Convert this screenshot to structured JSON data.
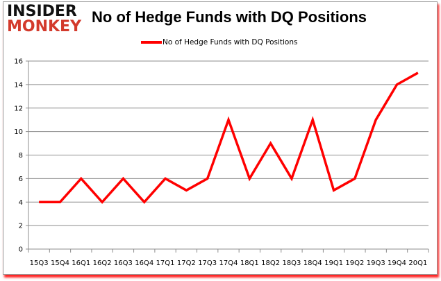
{
  "logo": {
    "line1": "INSIDER",
    "line2": "MONKEY"
  },
  "chart_data": {
    "type": "line",
    "title": "No of Hedge Funds with DQ Positions",
    "categories": [
      "15Q3",
      "15Q4",
      "16Q1",
      "16Q2",
      "16Q3",
      "16Q4",
      "17Q1",
      "17Q2",
      "17Q3",
      "17Q4",
      "18Q1",
      "18Q2",
      "18Q3",
      "18Q4",
      "19Q1",
      "19Q2",
      "19Q3",
      "19Q4",
      "20Q1"
    ],
    "series": [
      {
        "name": "No of Hedge Funds with DQ Positions",
        "color": "#ff0000",
        "values": [
          4,
          4,
          6,
          4,
          6,
          4,
          6,
          5,
          6,
          11,
          6,
          9,
          6,
          11,
          5,
          6,
          11,
          14,
          15
        ]
      }
    ],
    "ylim": [
      0,
      16
    ],
    "yticks": [
      0,
      2,
      4,
      6,
      8,
      10,
      12,
      14,
      16
    ],
    "grid": true,
    "legend": "top-center"
  }
}
